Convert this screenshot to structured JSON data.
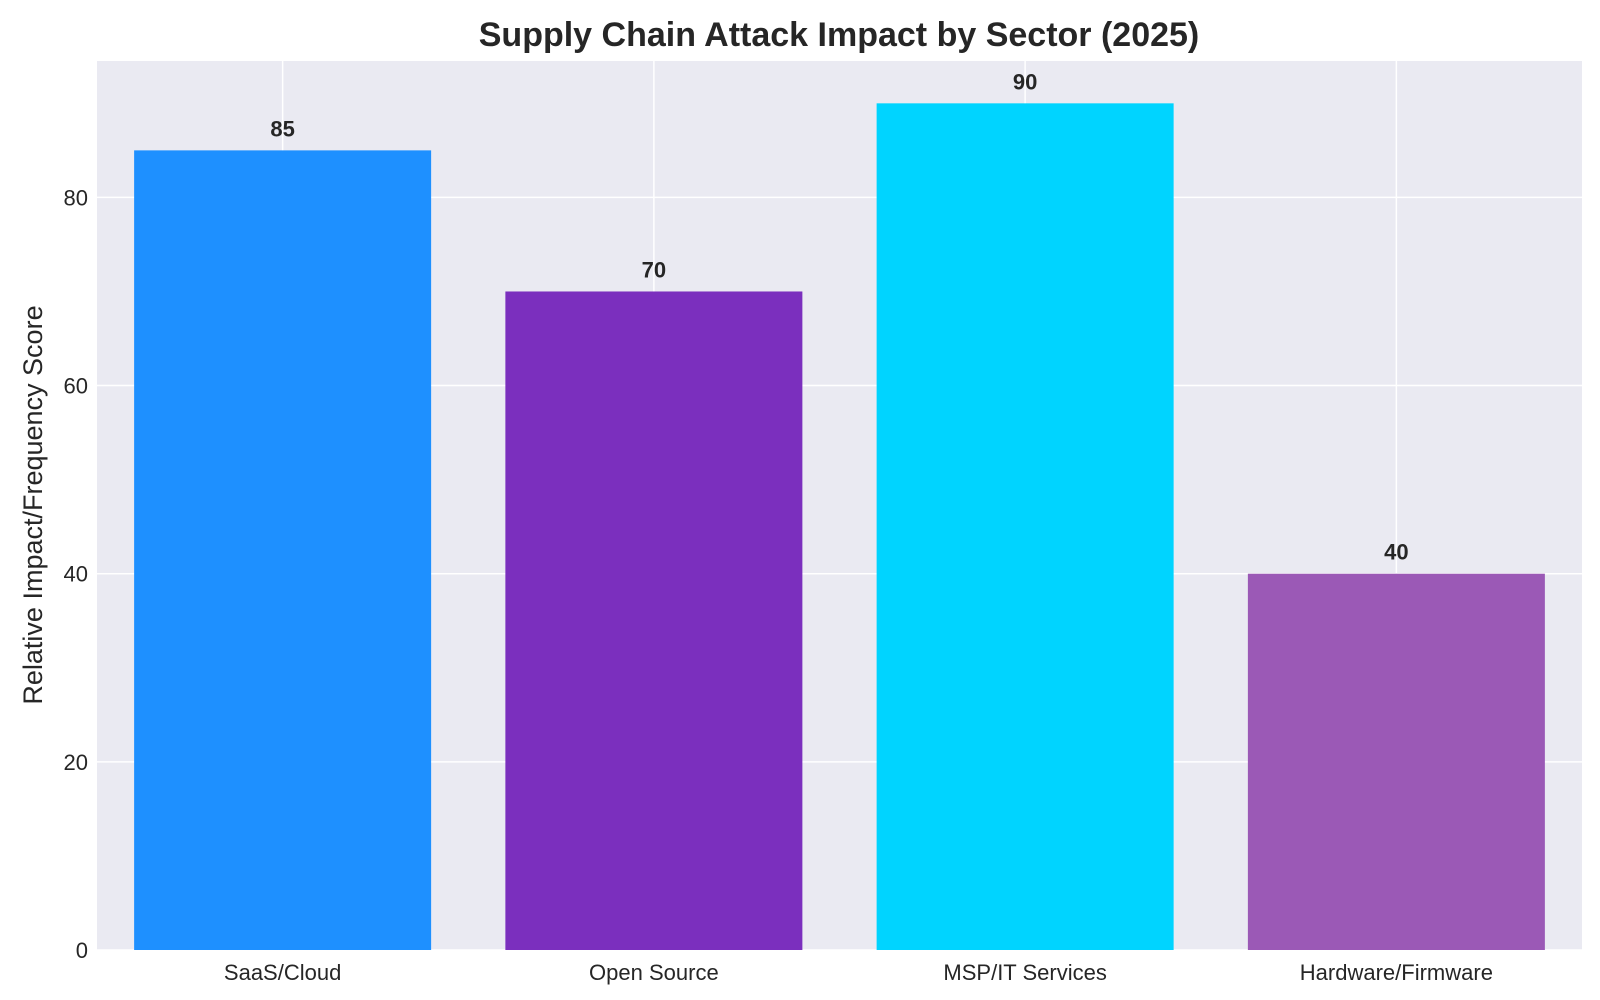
{
  "chart_data": {
    "type": "bar",
    "title": "Supply Chain Attack Impact by Sector (2025)",
    "xlabel": "",
    "ylabel": "Relative Impact/Frequency Score",
    "categories": [
      "SaaS/Cloud",
      "Open Source",
      "MSP/IT Services",
      "Hardware/Firmware"
    ],
    "values": [
      85,
      70,
      90,
      40
    ],
    "value_labels": [
      "85",
      "70",
      "90",
      "40"
    ],
    "colors": [
      "#1e90ff",
      "#7b2fbe",
      "#00d4ff",
      "#9b59b6"
    ],
    "ylim": [
      0,
      94.5
    ],
    "yticks": [
      0,
      20,
      40,
      60,
      80
    ],
    "ytick_labels": [
      "0",
      "20",
      "40",
      "60",
      "80"
    ],
    "grid": true,
    "legend": "none"
  },
  "style": {
    "plot_background": "#eaeaf2",
    "grid_color": "#ffffff",
    "text_color": "#262626"
  }
}
